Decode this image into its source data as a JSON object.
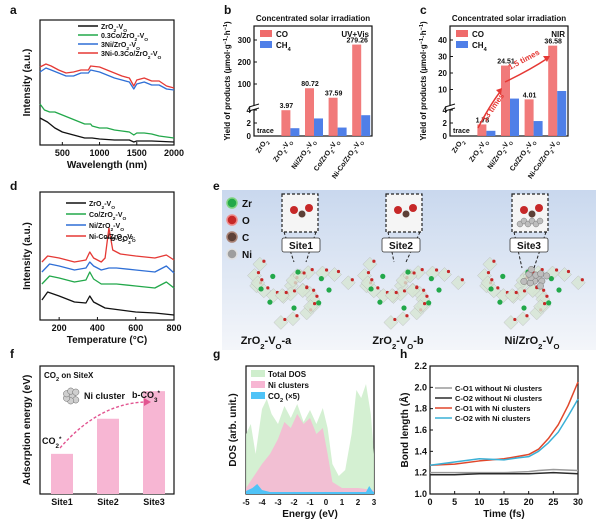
{
  "panel_letters": {
    "a": "a",
    "b": "b",
    "c": "c",
    "d": "d",
    "e": "e",
    "f": "f",
    "g": "g",
    "h": "h"
  },
  "colors": {
    "black": "#111111",
    "green": "#22a84a",
    "blue": "#2f6fd6",
    "red": "#e53935",
    "co_bar": "#ef6b6b",
    "ch4_bar": "#4f7fe8",
    "pink": "#f7b6d3",
    "dos_green": "#cfeecd",
    "dos_blue": "#4fc3f7",
    "teal": "#3ab0d6",
    "gray": "#9a9a9a",
    "dark": "#2b2b2b",
    "orange_red": "#e0472b"
  },
  "chart_data": [
    {
      "id": "a",
      "type": "line",
      "xlabel": "Wavelength (nm)",
      "ylabel": "Intensity (a.u.)",
      "xlim": [
        200,
        2000
      ],
      "xticks": [
        500,
        1000,
        1500,
        2000
      ],
      "legend": [
        "ZrO2-VO",
        "0.3Co/ZrO2-VO",
        "3Ni/ZrO2-VO",
        "3Ni-0.3Co/ZrO2-VO"
      ],
      "series_colors": [
        "#111111",
        "#22a84a",
        "#2f6fd6",
        "#e53935"
      ]
    },
    {
      "id": "b",
      "type": "bar",
      "title": "Concentrated solar irradiation",
      "condition": "UV+Vis",
      "ylabel": "Yield of products (µmol·g⁻¹·h⁻¹)",
      "categories": [
        "ZrO2",
        "ZrO2-VO",
        "Ni/ZrO2-VO",
        "Co/ZrO2-VO",
        "Ni-Co/ZrO2-VO"
      ],
      "series": [
        {
          "name": "CO",
          "values": [
            0,
            3.97,
            80.72,
            37.59,
            279.26
          ]
        },
        {
          "name": "CH4",
          "values": [
            0,
            1.2,
            2.7,
            1.3,
            3.2
          ]
        }
      ],
      "labels": [
        "trace",
        "3.97",
        "80.72",
        "37.59",
        "279.26"
      ],
      "yticks_low": [
        "0",
        "2",
        "4"
      ],
      "yticks_high": [
        "100",
        "200",
        "300"
      ]
    },
    {
      "id": "c",
      "type": "bar",
      "title": "Concentrated solar irradiation",
      "condition": "NIR",
      "ylabel": "Yield of products (µmol·g⁻¹·h⁻¹)",
      "categories": [
        "ZrO2",
        "ZrO2-VO",
        "Ni/ZrO2-VO",
        "Co/ZrO2-VO",
        "Ni-Co/ZrO2-VO"
      ],
      "series": [
        {
          "name": "CO",
          "values": [
            0,
            1.78,
            24.51,
            4.01,
            36.58
          ]
        },
        {
          "name": "CH4",
          "values": [
            0,
            0.8,
            4.5,
            2.3,
            9.1
          ]
        }
      ],
      "labels": [
        "trace",
        "1.78",
        "24.51",
        "4.01",
        "36.58"
      ],
      "yticks_low": [
        "0",
        "2",
        "4"
      ],
      "yticks_high": [
        "10",
        "20",
        "30",
        "40"
      ],
      "annotations": [
        "13 times",
        "1.5 times"
      ]
    },
    {
      "id": "d",
      "type": "line",
      "xlabel": "Temperature (°C)",
      "ylabel": "Intensity (a.u.)",
      "xlim": [
        100,
        800
      ],
      "xticks": [
        200,
        400,
        600,
        800
      ],
      "legend": [
        "ZrO2-VO",
        "Co/ZrO2-VO",
        "Ni/ZrO2-VO",
        "Ni-Co/ZrO2-VO"
      ],
      "series_colors": [
        "#111111",
        "#22a84a",
        "#2f6fd6",
        "#e53935"
      ],
      "annotation": "b-CO3 2-"
    },
    {
      "id": "f",
      "type": "bar",
      "title": "CO2 on SiteX",
      "ylabel": "Adsorption energy (eV)",
      "categories": [
        "Site1",
        "Site2",
        "Site3"
      ],
      "values": [
        0.32,
        0.6,
        0.82
      ],
      "annotations": [
        "CO2*",
        "b-CO3*",
        "Ni cluster"
      ]
    },
    {
      "id": "g",
      "type": "area",
      "xlabel": "Energy (eV)",
      "ylabel": "DOS (arb. unit.)",
      "xlim": [
        -5,
        3
      ],
      "xticks": [
        -5,
        -4,
        -3,
        -2,
        -1,
        0,
        1,
        2,
        3
      ],
      "legend": [
        "Total DOS",
        "Ni clusters",
        "CO2 (×5)"
      ]
    },
    {
      "id": "h",
      "type": "line",
      "xlabel": "Time (fs)",
      "ylabel": "Bond length (Å)",
      "xlim": [
        0,
        30
      ],
      "ylim": [
        1.0,
        2.2
      ],
      "xticks": [
        0,
        5,
        10,
        15,
        20,
        25,
        30
      ],
      "yticks": [
        "1.0",
        "1.2",
        "1.4",
        "1.6",
        "1.8",
        "2.0",
        "2.2"
      ],
      "legend": [
        "C-O1 without Ni clusters",
        "C-O2 without Ni clusters",
        "C-O1 with Ni clusters",
        "C-O2 with Ni clusters"
      ],
      "series": [
        {
          "name": "C-O1 without Ni clusters",
          "x": [
            0,
            5,
            10,
            15,
            20,
            22,
            25,
            30
          ],
          "y": [
            1.2,
            1.2,
            1.2,
            1.2,
            1.21,
            1.22,
            1.23,
            1.22
          ]
        },
        {
          "name": "C-O2 without Ni clusters",
          "x": [
            0,
            5,
            10,
            15,
            20,
            25,
            30
          ],
          "y": [
            1.18,
            1.18,
            1.19,
            1.19,
            1.19,
            1.2,
            1.19
          ]
        },
        {
          "name": "C-O1 with Ni clusters",
          "x": [
            0,
            5,
            10,
            15,
            20,
            22,
            24,
            26,
            28,
            30
          ],
          "y": [
            1.27,
            1.28,
            1.31,
            1.33,
            1.37,
            1.42,
            1.52,
            1.65,
            1.83,
            2.05
          ]
        },
        {
          "name": "C-O2 with Ni clusters",
          "x": [
            0,
            5,
            10,
            15,
            18,
            20,
            22,
            24,
            26,
            28,
            30
          ],
          "y": [
            1.27,
            1.3,
            1.33,
            1.32,
            1.34,
            1.35,
            1.4,
            1.48,
            1.58,
            1.73,
            1.89
          ]
        }
      ]
    }
  ],
  "panel_e": {
    "legend": [
      "Zr",
      "O",
      "C",
      "Ni"
    ],
    "sites": [
      "Site1",
      "Site2",
      "Site3"
    ],
    "structures": [
      "ZrO2-VO-a",
      "ZrO2-VO-b",
      "Ni/ZrO2-VO"
    ]
  }
}
